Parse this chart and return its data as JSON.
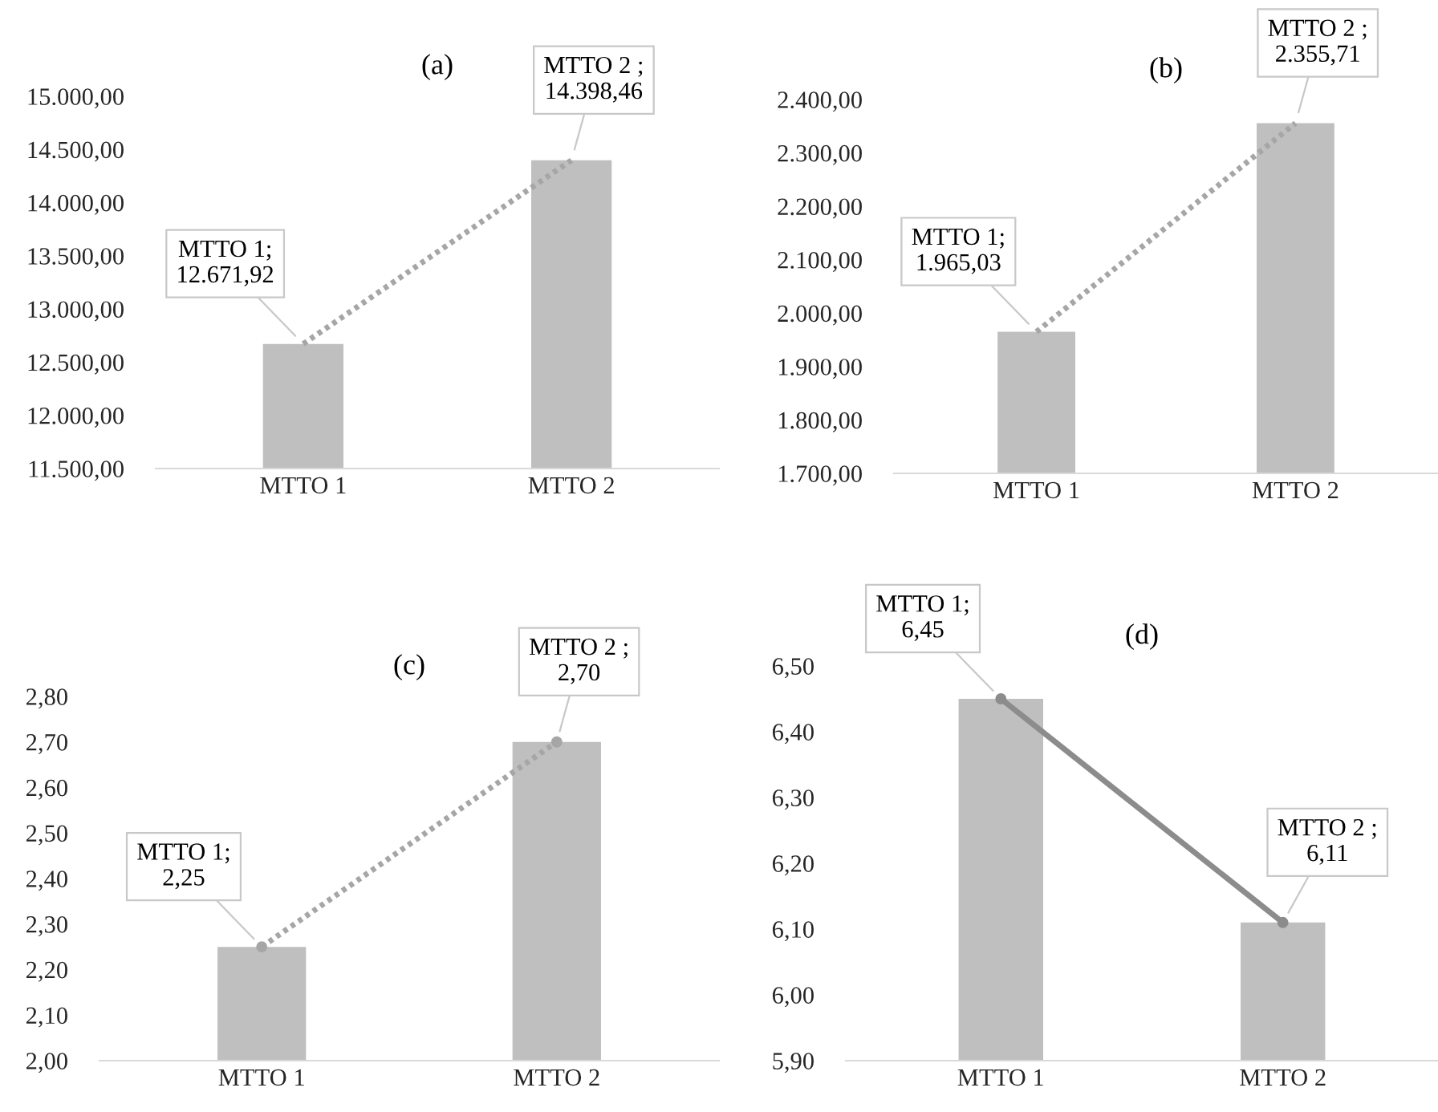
{
  "chart_data": [
    {
      "type": "bar",
      "title": "(a)",
      "categories": [
        "MTTO 1",
        "MTTO 2"
      ],
      "ylim": [
        11500,
        15000
      ],
      "yticks": [
        {
          "value": 11500,
          "label": "11.500,00"
        },
        {
          "value": 12000,
          "label": "12.000,00"
        },
        {
          "value": 12500,
          "label": "12.500,00"
        },
        {
          "value": 13000,
          "label": "13.000,00"
        },
        {
          "value": 13500,
          "label": "13.500,00"
        },
        {
          "value": 14000,
          "label": "14.000,00"
        },
        {
          "value": 14500,
          "label": "14.500,00"
        },
        {
          "value": 15000,
          "label": "15.000,00"
        }
      ],
      "grid": false,
      "legend": false,
      "series": [
        {
          "color": "#bfbfbf",
          "values": [
            12671.92,
            14398.46
          ]
        },
        {
          "type": "line",
          "color": "#a6a6a6",
          "line_style": "dotted",
          "marker": "none",
          "values": [
            12671.92,
            14398.46
          ],
          "value_labels": [
            "MTTO 1;\n12.671,92",
            "MTTO 2 ;\n14.398,46"
          ]
        }
      ]
    },
    {
      "type": "bar",
      "title": "(b)",
      "categories": [
        "MTTO 1",
        "MTTO 2"
      ],
      "ylim": [
        1700,
        2400
      ],
      "yticks": [
        {
          "value": 1700,
          "label": "1.700,00"
        },
        {
          "value": 1800,
          "label": "1.800,00"
        },
        {
          "value": 1900,
          "label": "1.900,00"
        },
        {
          "value": 2000,
          "label": "2.000,00"
        },
        {
          "value": 2100,
          "label": "2.100,00"
        },
        {
          "value": 2200,
          "label": "2.200,00"
        },
        {
          "value": 2300,
          "label": "2.300,00"
        },
        {
          "value": 2400,
          "label": "2.400,00"
        }
      ],
      "grid": false,
      "legend": false,
      "series": [
        {
          "color": "#bfbfbf",
          "values": [
            1965.03,
            2355.71
          ]
        },
        {
          "type": "line",
          "color": "#a6a6a6",
          "line_style": "dotted",
          "marker": "none",
          "values": [
            1965.03,
            2355.71
          ],
          "value_labels": [
            "MTTO 1;\n1.965,03",
            "MTTO 2 ;\n2.355,71"
          ]
        }
      ]
    },
    {
      "type": "bar",
      "title": "(c)",
      "categories": [
        "MTTO 1",
        "MTTO 2"
      ],
      "ylim": [
        2.0,
        2.8
      ],
      "yticks": [
        {
          "value": 2.0,
          "label": "2,00"
        },
        {
          "value": 2.1,
          "label": "2,10"
        },
        {
          "value": 2.2,
          "label": "2,20"
        },
        {
          "value": 2.3,
          "label": "2,30"
        },
        {
          "value": 2.4,
          "label": "2,40"
        },
        {
          "value": 2.5,
          "label": "2,50"
        },
        {
          "value": 2.6,
          "label": "2,60"
        },
        {
          "value": 2.7,
          "label": "2,70"
        },
        {
          "value": 2.8,
          "label": "2,80"
        }
      ],
      "grid": false,
      "legend": false,
      "series": [
        {
          "color": "#bfbfbf",
          "values": [
            2.25,
            2.7
          ]
        },
        {
          "type": "line",
          "color": "#a6a6a6",
          "line_style": "dotted",
          "marker": "circle",
          "values": [
            2.25,
            2.7
          ],
          "value_labels": [
            "MTTO 1;\n2,25",
            "MTTO 2 ;\n2,70"
          ]
        }
      ]
    },
    {
      "type": "bar",
      "title": "(d)",
      "categories": [
        "MTTO 1",
        "MTTO 2"
      ],
      "ylim": [
        5.9,
        6.5
      ],
      "yticks": [
        {
          "value": 5.9,
          "label": "5,90"
        },
        {
          "value": 6.0,
          "label": "6,00"
        },
        {
          "value": 6.1,
          "label": "6,10"
        },
        {
          "value": 6.2,
          "label": "6,20"
        },
        {
          "value": 6.3,
          "label": "6,30"
        },
        {
          "value": 6.4,
          "label": "6,40"
        },
        {
          "value": 6.5,
          "label": "6,50"
        }
      ],
      "grid": false,
      "legend": false,
      "series": [
        {
          "color": "#bfbfbf",
          "values": [
            6.45,
            6.11
          ]
        },
        {
          "type": "line",
          "color": "#8c8c8c",
          "line_style": "solid",
          "marker": "circle",
          "values": [
            6.45,
            6.11
          ],
          "value_labels": [
            "MTTO 1;\n6,45",
            "MTTO 2 ;\n6,11"
          ]
        }
      ]
    }
  ]
}
